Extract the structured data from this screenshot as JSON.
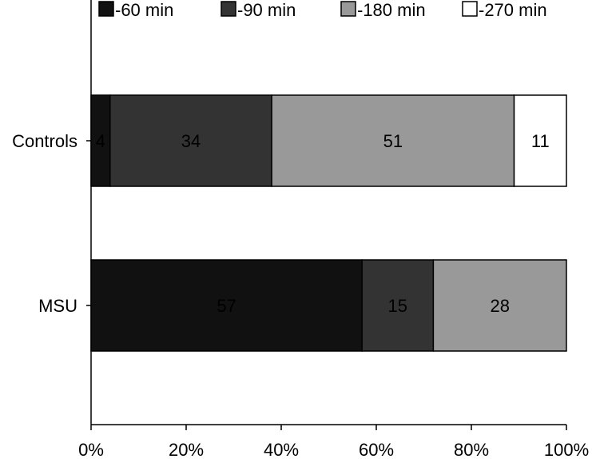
{
  "chart_data": {
    "type": "bar",
    "orientation": "horizontal",
    "stacked": true,
    "categories": [
      "Controls",
      "MSU"
    ],
    "series": [
      {
        "name": "-60 min",
        "color": "#111111",
        "values": [
          4,
          57
        ]
      },
      {
        "name": "-90 min",
        "color": "#333333",
        "values": [
          34,
          15
        ]
      },
      {
        "name": "-180 min",
        "color": "#999999",
        "values": [
          51,
          28
        ]
      },
      {
        "name": "-270 min",
        "color": "#ffffff",
        "values": [
          11,
          0
        ]
      }
    ],
    "data_labels": [
      [
        "4",
        "34",
        "51",
        "11"
      ],
      [
        "57",
        "15",
        "28",
        ""
      ]
    ],
    "xlim": [
      0,
      100
    ],
    "xticks": [
      0,
      20,
      40,
      60,
      80,
      100
    ],
    "xtick_labels": [
      "0%",
      "20%",
      "40%",
      "60%",
      "80%",
      "100%"
    ],
    "title": "",
    "xlabel": "",
    "ylabel": "",
    "grid": false,
    "legend_position": "top"
  }
}
